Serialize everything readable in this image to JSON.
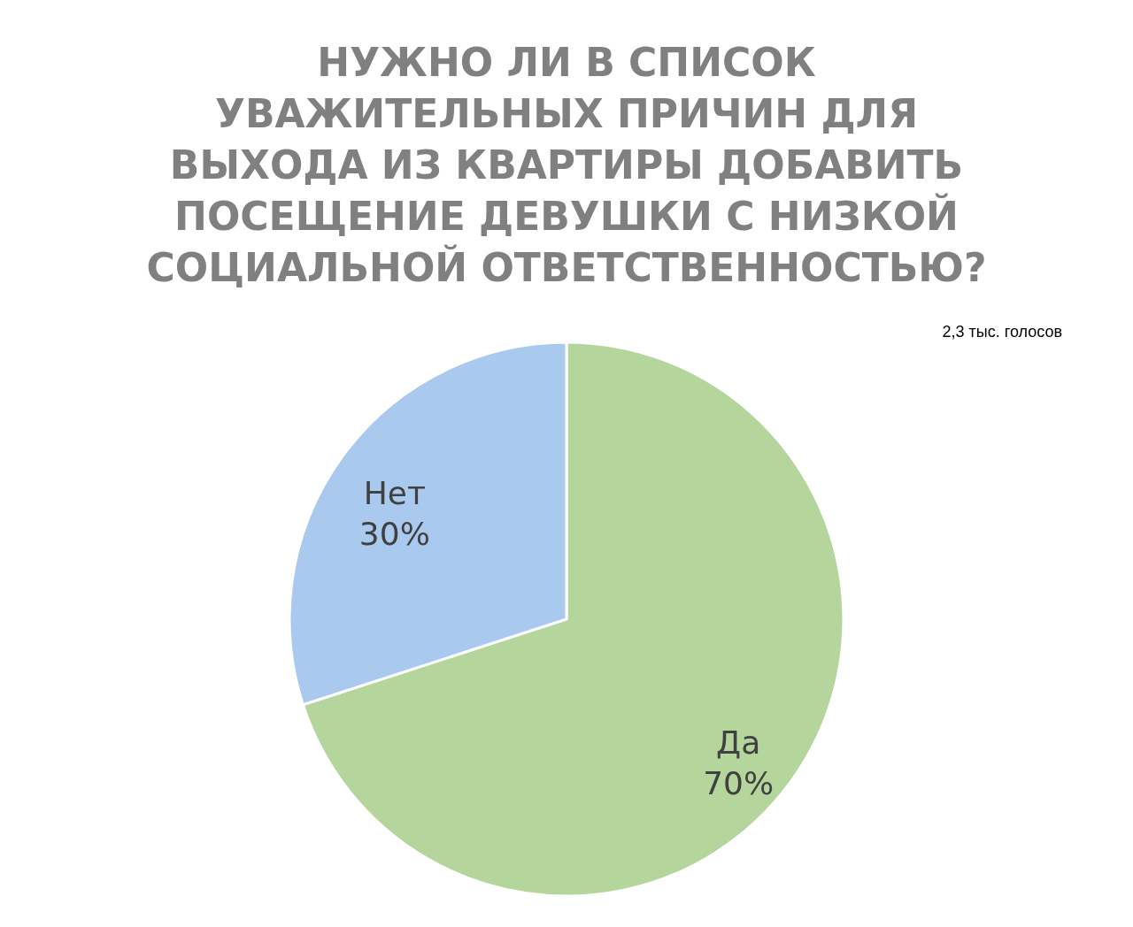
{
  "chart_data": {
    "type": "pie",
    "title": "НУЖНО ЛИ В СПИСОК УВАЖИТЕЛЬНЫХ ПРИЧИН ДЛЯ ВЫХОДА ИЗ КВАРТИРЫ ДОБАВИТЬ ПОСЕЩЕНИЕ ДЕВУШКИ С НИЗКОЙ СОЦИАЛЬНОЙ ОТВЕТСТВЕННОСТЬЮ?",
    "categories": [
      "Да",
      "Нет"
    ],
    "values": [
      70,
      30
    ],
    "colors": [
      "#b4d59c",
      "#a9c9ee"
    ],
    "value_labels": [
      "70%",
      "30%"
    ],
    "legend": false,
    "annotations": [
      "2,3 тыс. голосов"
    ]
  }
}
